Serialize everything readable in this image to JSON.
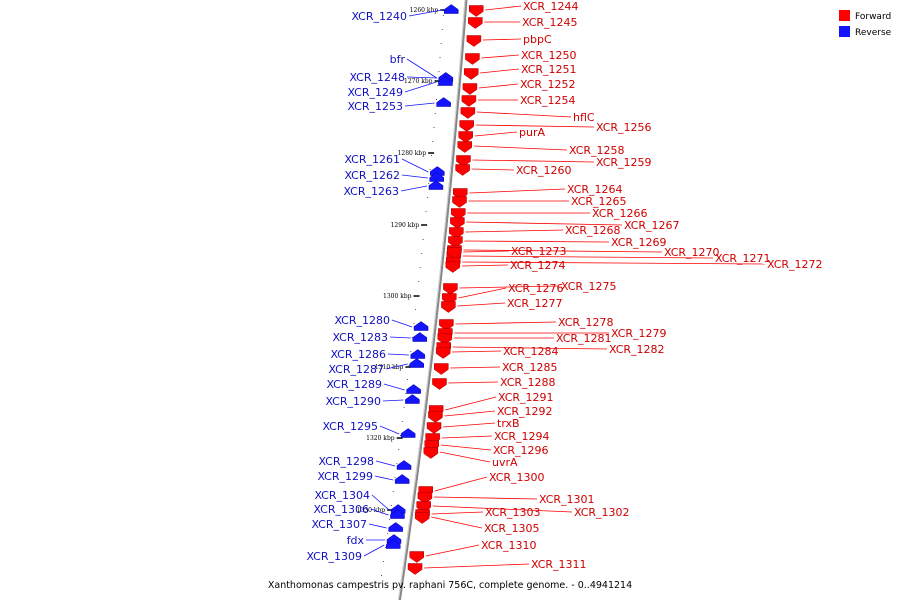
{
  "colors": {
    "forward": "#ff0000",
    "reverse": "#1414ff",
    "backbone": "#888888",
    "forward_text": "#d00000",
    "reverse_text": "#1010c0"
  },
  "legend": {
    "forward": "Forward",
    "reverse": "Reverse"
  },
  "caption": "Xanthomonas campestris pv. raphani 756C, complete genome. - 0..4941214",
  "ticks": [
    "1260 kbp",
    "1270 kbp",
    "1280 kbp",
    "1290 kbp",
    "1300 kbp",
    "1310 kbp",
    "1320 kbp",
    "1330 kbp"
  ],
  "forward_genes": [
    "XCR_1244",
    "XCR_1245",
    "pbpC",
    "XCR_1250",
    "XCR_1251",
    "XCR_1252",
    "XCR_1254",
    "hflC",
    "XCR_1256",
    "purA",
    "XCR_1258",
    "XCR_1259",
    "XCR_1260",
    "XCR_1264",
    "XCR_1265",
    "XCR_1266",
    "XCR_1267",
    "XCR_1268",
    "XCR_1269",
    "XCR_1270",
    "XCR_1271",
    "XCR_1272",
    "XCR_1273",
    "XCR_1274",
    "XCR_1275",
    "XCR_1276",
    "XCR_1277",
    "XCR_1278",
    "XCR_1279",
    "XCR_1281",
    "XCR_1282",
    "XCR_1284",
    "XCR_1285",
    "XCR_1288",
    "XCR_1291",
    "XCR_1292",
    "trxB",
    "XCR_1294",
    "XCR_1296",
    "uvrA",
    "XCR_1300",
    "XCR_1301",
    "XCR_1302",
    "XCR_1303",
    "XCR_1305",
    "XCR_1310",
    "XCR_1311"
  ],
  "reverse_genes": [
    "XCR_1240",
    "bfr",
    "XCR_1248",
    "XCR_1249",
    "XCR_1253",
    "XCR_1261",
    "XCR_1262",
    "XCR_1263",
    "XCR_1280",
    "XCR_1283",
    "XCR_1286",
    "XCR_1287",
    "XCR_1289",
    "XCR_1290",
    "XCR_1295",
    "XCR_1298",
    "XCR_1299",
    "XCR_1304",
    "XCR_1306",
    "XCR_1307",
    "fdx",
    "XCR_1309"
  ]
}
